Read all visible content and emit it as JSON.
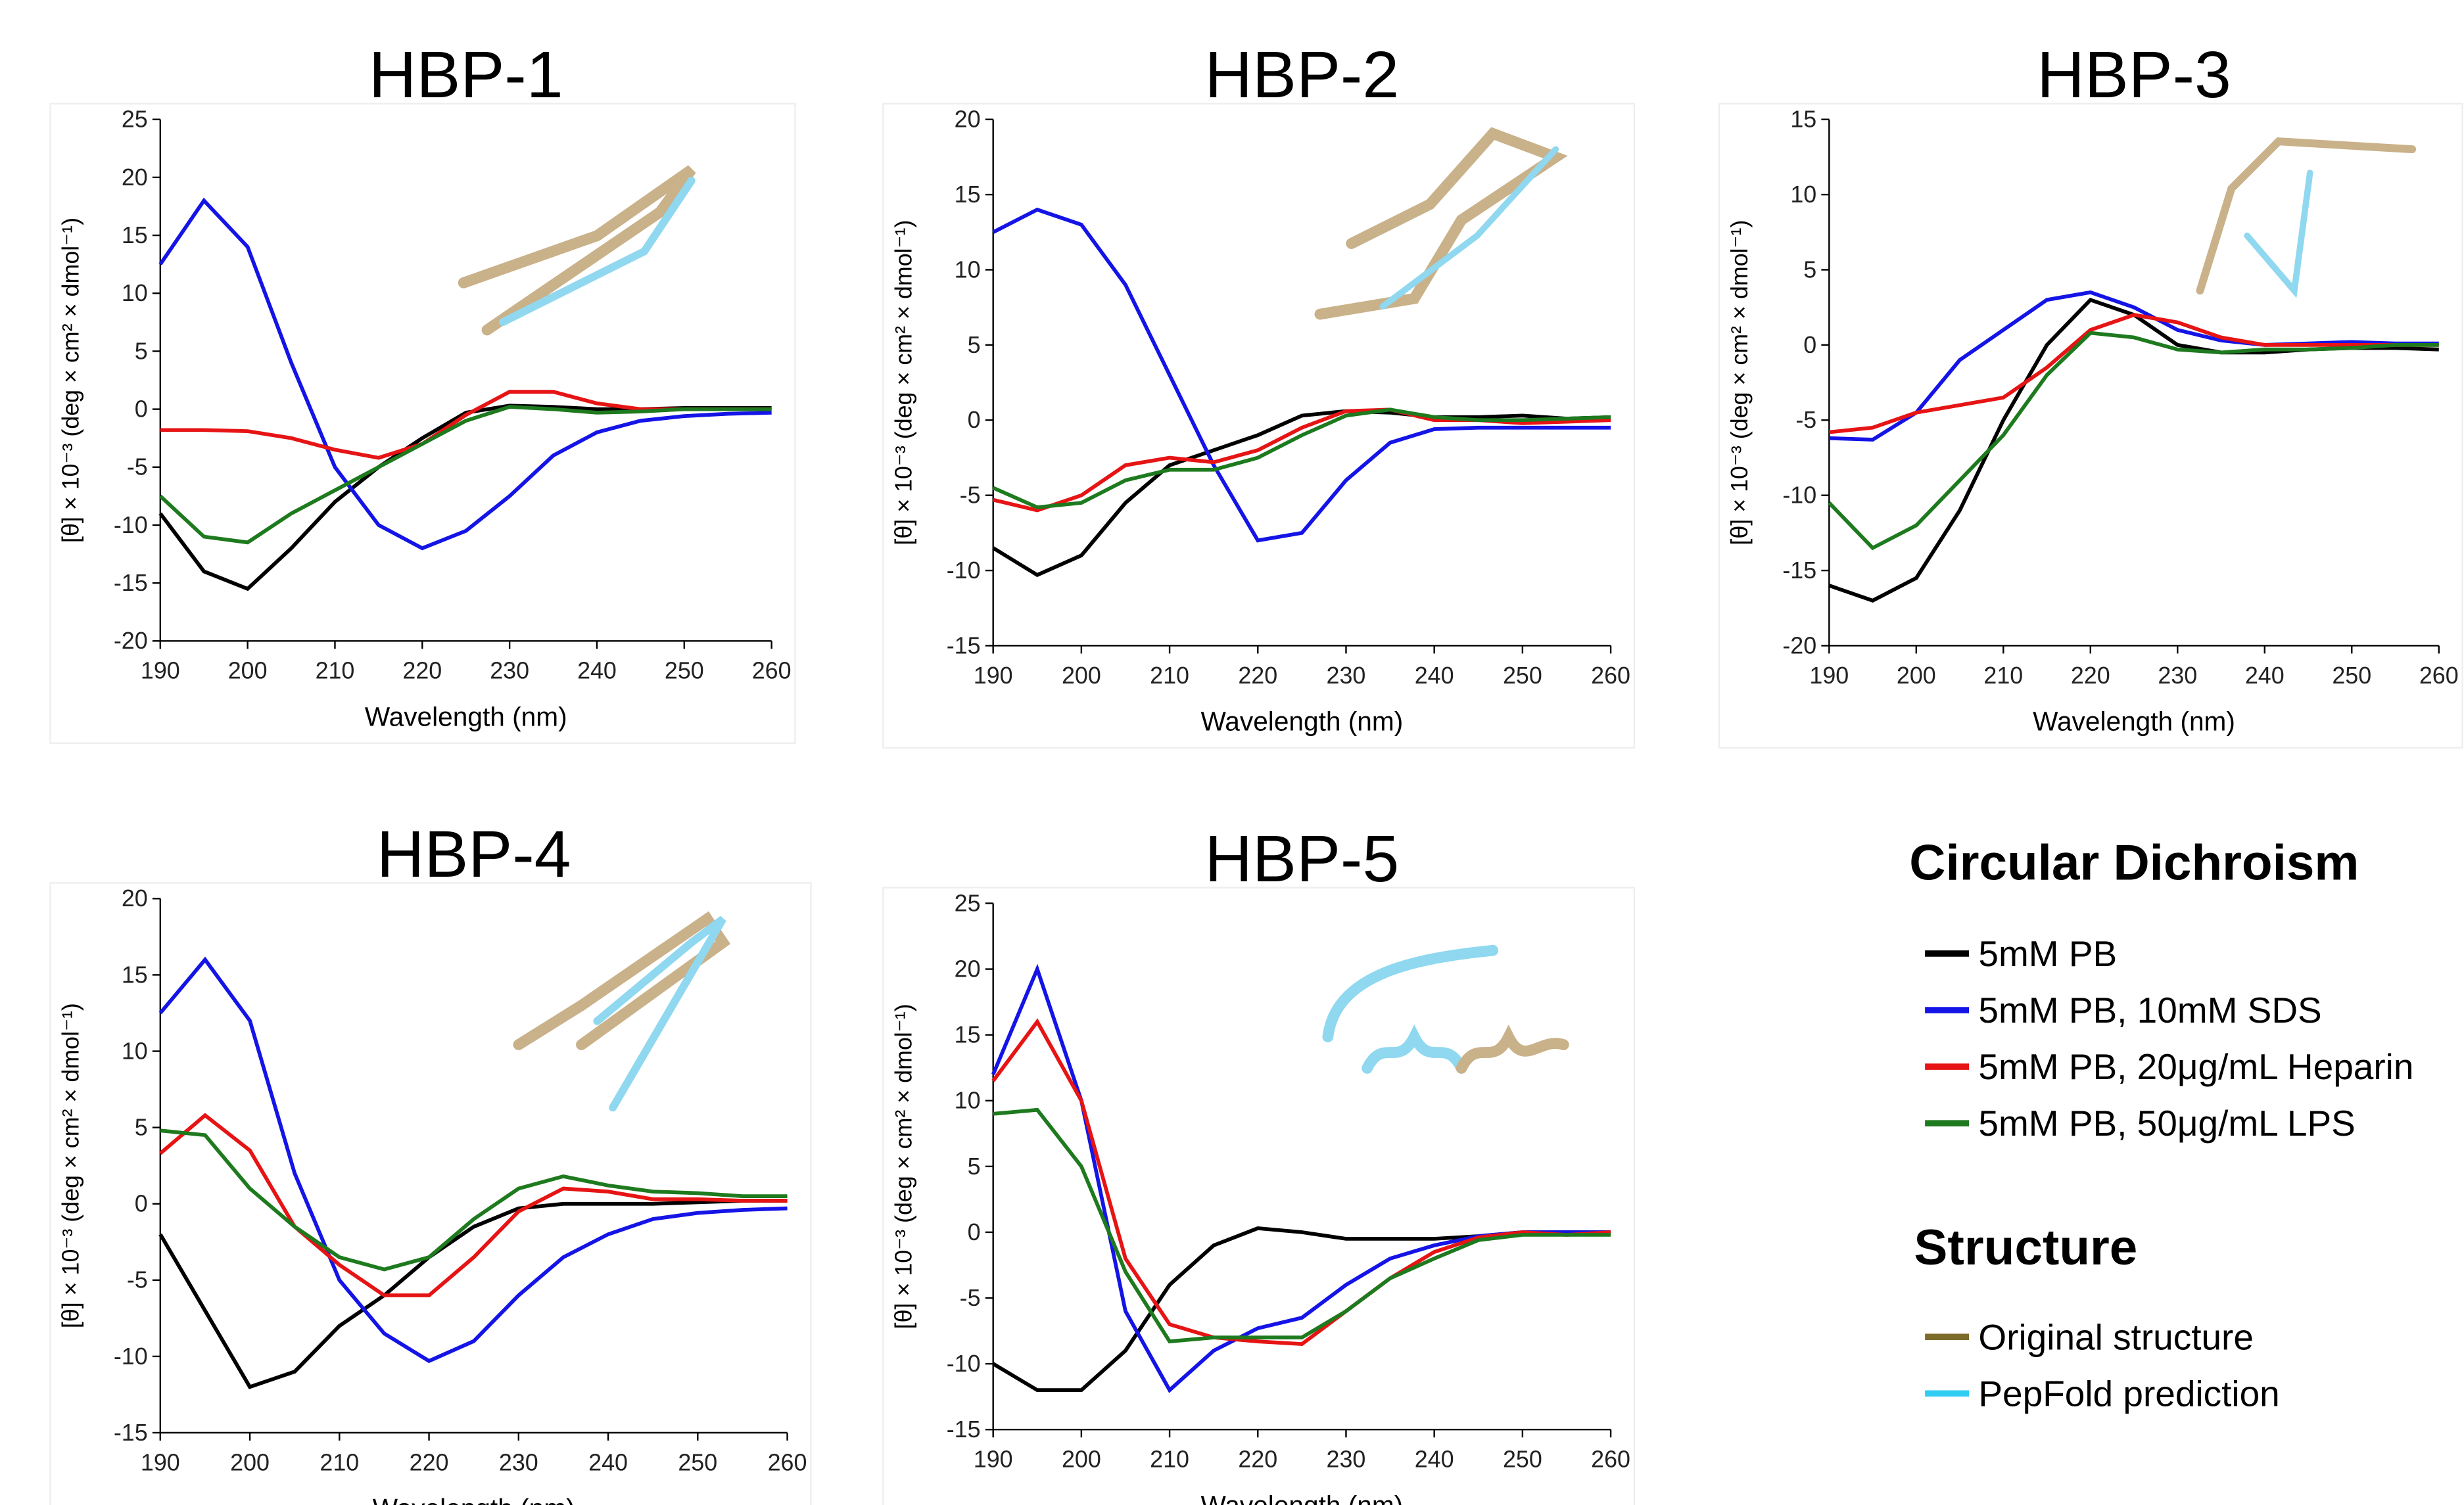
{
  "chart_data": [
    {
      "type": "line",
      "title": "HBP-1",
      "x_label": "Wavelength (nm)",
      "y_label": "[θ] × 10⁻³ (deg × cm² × dmol⁻¹)",
      "x": [
        190,
        195,
        200,
        205,
        210,
        215,
        220,
        225,
        230,
        235,
        240,
        245,
        250,
        255,
        260
      ],
      "xlim": [
        190,
        260
      ],
      "xticks": [
        190,
        200,
        210,
        220,
        230,
        240,
        250,
        260
      ],
      "ylim": [
        -20,
        25
      ],
      "yticks": [
        -20,
        -15,
        -10,
        -5,
        0,
        5,
        10,
        15,
        20,
        25
      ],
      "series": [
        {
          "name": "5mM PB",
          "color": "#000000",
          "values": [
            -9,
            -14,
            -15.5,
            -12,
            -8,
            -5,
            -2.5,
            -0.3,
            0.3,
            0.2,
            0,
            0,
            0.1,
            0.1,
            0.1
          ]
        },
        {
          "name": "5mM PB, 10mM SDS",
          "color": "#1414e6",
          "values": [
            12.5,
            18,
            14,
            4,
            -5,
            -10,
            -12,
            -10.5,
            -7.5,
            -4,
            -2,
            -1,
            -0.6,
            -0.4,
            -0.3
          ]
        },
        {
          "name": "5mM PB, 20μg/mL Heparin",
          "color": "#e61414",
          "values": [
            -1.8,
            -1.8,
            -1.9,
            -2.5,
            -3.5,
            -4.2,
            -3,
            -0.5,
            1.5,
            1.5,
            0.5,
            0,
            0,
            0,
            0
          ]
        },
        {
          "name": "5mM PB, 50μg/mL LPS",
          "color": "#1e7a1e",
          "values": [
            -7.5,
            -11,
            -11.5,
            -9,
            -7,
            -5,
            -3,
            -1,
            0.2,
            0,
            -0.3,
            -0.2,
            0,
            0,
            0
          ]
        }
      ]
    },
    {
      "type": "line",
      "title": "HBP-2",
      "x_label": "Wavelength (nm)",
      "y_label": "[θ] × 10⁻³ (deg × cm² × dmol⁻¹)",
      "x": [
        190,
        195,
        200,
        205,
        210,
        215,
        220,
        225,
        230,
        235,
        240,
        245,
        250,
        255,
        260
      ],
      "xlim": [
        190,
        260
      ],
      "xticks": [
        190,
        200,
        210,
        220,
        230,
        240,
        250,
        260
      ],
      "ylim": [
        -15,
        20
      ],
      "yticks": [
        -15,
        -10,
        -5,
        0,
        5,
        10,
        15,
        20
      ],
      "series": [
        {
          "name": "5mM PB",
          "color": "#000000",
          "values": [
            -8.5,
            -10.3,
            -9,
            -5.5,
            -3,
            -2,
            -1,
            0.3,
            0.6,
            0.5,
            0.2,
            0.2,
            0.3,
            0.1,
            0.2
          ]
        },
        {
          "name": "5mM PB, 10mM SDS",
          "color": "#1414e6",
          "values": [
            12.5,
            14,
            13,
            9,
            3,
            -3,
            -8,
            -7.5,
            -4,
            -1.5,
            -0.6,
            -0.5,
            -0.5,
            -0.5,
            -0.5
          ]
        },
        {
          "name": "5mM PB, 20μg/mL Heparin",
          "color": "#e61414",
          "values": [
            -5.3,
            -6,
            -5,
            -3,
            -2.5,
            -2.8,
            -2,
            -0.5,
            0.6,
            0.7,
            0,
            0,
            -0.2,
            -0.1,
            0
          ]
        },
        {
          "name": "5mM PB, 50μg/mL LPS",
          "color": "#1e7a1e",
          "values": [
            -4.5,
            -5.8,
            -5.5,
            -4,
            -3.3,
            -3.3,
            -2.5,
            -1,
            0.3,
            0.7,
            0.2,
            0,
            0,
            0.1,
            0.2
          ]
        }
      ]
    },
    {
      "type": "line",
      "title": "HBP-3",
      "x_label": "Wavelength (nm)",
      "y_label": "[θ] × 10⁻³ (deg × cm² × dmol⁻¹)",
      "x": [
        190,
        195,
        200,
        205,
        210,
        215,
        220,
        225,
        230,
        235,
        240,
        245,
        250,
        255,
        260
      ],
      "xlim": [
        190,
        260
      ],
      "xticks": [
        190,
        200,
        210,
        220,
        230,
        240,
        250,
        260
      ],
      "ylim": [
        -20,
        15
      ],
      "yticks": [
        -20,
        -15,
        -10,
        -5,
        0,
        5,
        10,
        15
      ],
      "series": [
        {
          "name": "5mM PB",
          "color": "#000000",
          "values": [
            -16,
            -17,
            -15.5,
            -11,
            -5,
            0,
            3,
            2,
            0,
            -0.5,
            -0.5,
            -0.3,
            -0.2,
            -0.2,
            -0.3
          ]
        },
        {
          "name": "5mM PB, 10mM SDS",
          "color": "#1414e6",
          "values": [
            -6.2,
            -6.3,
            -4.5,
            -1,
            1,
            3,
            3.5,
            2.5,
            1,
            0.3,
            0,
            0.1,
            0.2,
            0.1,
            0.1
          ]
        },
        {
          "name": "5mM PB, 20μg/mL Heparin",
          "color": "#e61414",
          "values": [
            -5.8,
            -5.5,
            -4.5,
            -4,
            -3.5,
            -1.5,
            1,
            2,
            1.5,
            0.5,
            0,
            0,
            0,
            0,
            0
          ]
        },
        {
          "name": "5mM PB, 50μg/mL LPS",
          "color": "#1e7a1e",
          "values": [
            -10.5,
            -13.5,
            -12,
            -9,
            -6,
            -2,
            0.8,
            0.5,
            -0.3,
            -0.5,
            -0.3,
            -0.3,
            -0.2,
            0,
            0
          ]
        }
      ]
    },
    {
      "type": "line",
      "title": "HBP-4",
      "x_label": "Wavelength (nm)",
      "y_label": "[θ] × 10⁻³ (deg × cm² × dmol⁻¹)",
      "x": [
        190,
        195,
        200,
        205,
        210,
        215,
        220,
        225,
        230,
        235,
        240,
        245,
        250,
        255,
        260
      ],
      "xlim": [
        190,
        260
      ],
      "xticks": [
        190,
        200,
        210,
        220,
        230,
        240,
        250,
        260
      ],
      "ylim": [
        -15,
        20
      ],
      "yticks": [
        -15,
        -10,
        -5,
        0,
        5,
        10,
        15,
        20
      ],
      "series": [
        {
          "name": "5mM PB",
          "color": "#000000",
          "values": [
            -2,
            -7,
            -12,
            -11,
            -8,
            -6,
            -3.5,
            -1.5,
            -0.3,
            0,
            0,
            0,
            0.1,
            0.2,
            0.2
          ]
        },
        {
          "name": "5mM PB, 10mM SDS",
          "color": "#1414e6",
          "values": [
            12.5,
            16,
            12,
            2,
            -5,
            -8.5,
            -10.3,
            -9,
            -6,
            -3.5,
            -2,
            -1,
            -0.6,
            -0.4,
            -0.3
          ]
        },
        {
          "name": "5mM PB, 20μg/mL Heparin",
          "color": "#e61414",
          "values": [
            3.3,
            5.8,
            3.5,
            -1.5,
            -4,
            -6,
            -6,
            -3.5,
            -0.5,
            1,
            0.8,
            0.3,
            0.3,
            0.2,
            0.2
          ]
        },
        {
          "name": "5mM PB, 50μg/mL LPS",
          "color": "#1e7a1e",
          "values": [
            4.8,
            4.5,
            1,
            -1.5,
            -3.5,
            -4.3,
            -3.5,
            -1,
            1,
            1.8,
            1.2,
            0.8,
            0.7,
            0.5,
            0.5
          ]
        }
      ]
    },
    {
      "type": "line",
      "title": "HBP-5",
      "x_label": "Wavelength (nm)",
      "y_label": "[θ] × 10⁻³ (deg × cm² × dmol⁻¹)",
      "x": [
        190,
        195,
        200,
        205,
        210,
        215,
        220,
        225,
        230,
        235,
        240,
        245,
        250,
        255,
        260
      ],
      "xlim": [
        190,
        260
      ],
      "xticks": [
        190,
        200,
        210,
        220,
        230,
        240,
        250,
        260
      ],
      "ylim": [
        -15,
        25
      ],
      "yticks": [
        -15,
        -10,
        -5,
        0,
        5,
        10,
        15,
        20,
        25
      ],
      "series": [
        {
          "name": "5mM PB",
          "color": "#000000",
          "values": [
            -10,
            -12,
            -12,
            -9,
            -4,
            -1,
            0.3,
            0,
            -0.5,
            -0.5,
            -0.5,
            -0.3,
            0,
            0,
            0
          ]
        },
        {
          "name": "5mM PB, 10mM SDS",
          "color": "#1414e6",
          "values": [
            12,
            20,
            10,
            -6,
            -12,
            -9,
            -7.3,
            -6.5,
            -4,
            -2,
            -1,
            -0.3,
            0,
            0,
            0
          ]
        },
        {
          "name": "5mM PB, 20μg/mL Heparin",
          "color": "#e61414",
          "values": [
            11.5,
            16,
            10,
            -2,
            -7,
            -8,
            -8.3,
            -8.5,
            -6,
            -3.5,
            -1.5,
            -0.4,
            0,
            -0.2,
            0
          ]
        },
        {
          "name": "5mM PB, 50μg/mL LPS",
          "color": "#1e7a1e",
          "values": [
            9,
            9.3,
            5,
            -3,
            -8.3,
            -8,
            -8,
            -8,
            -6,
            -3.5,
            -2,
            -0.6,
            -0.2,
            -0.2,
            -0.2
          ]
        }
      ]
    }
  ],
  "legend": {
    "title": "Circular Dichroism"
  },
  "structure_legend": {
    "title": "Structure",
    "items": [
      {
        "label": "Original structure",
        "color": "#7d6b2a"
      },
      {
        "label": "PepFold prediction",
        "color": "#33ccf2"
      }
    ]
  }
}
